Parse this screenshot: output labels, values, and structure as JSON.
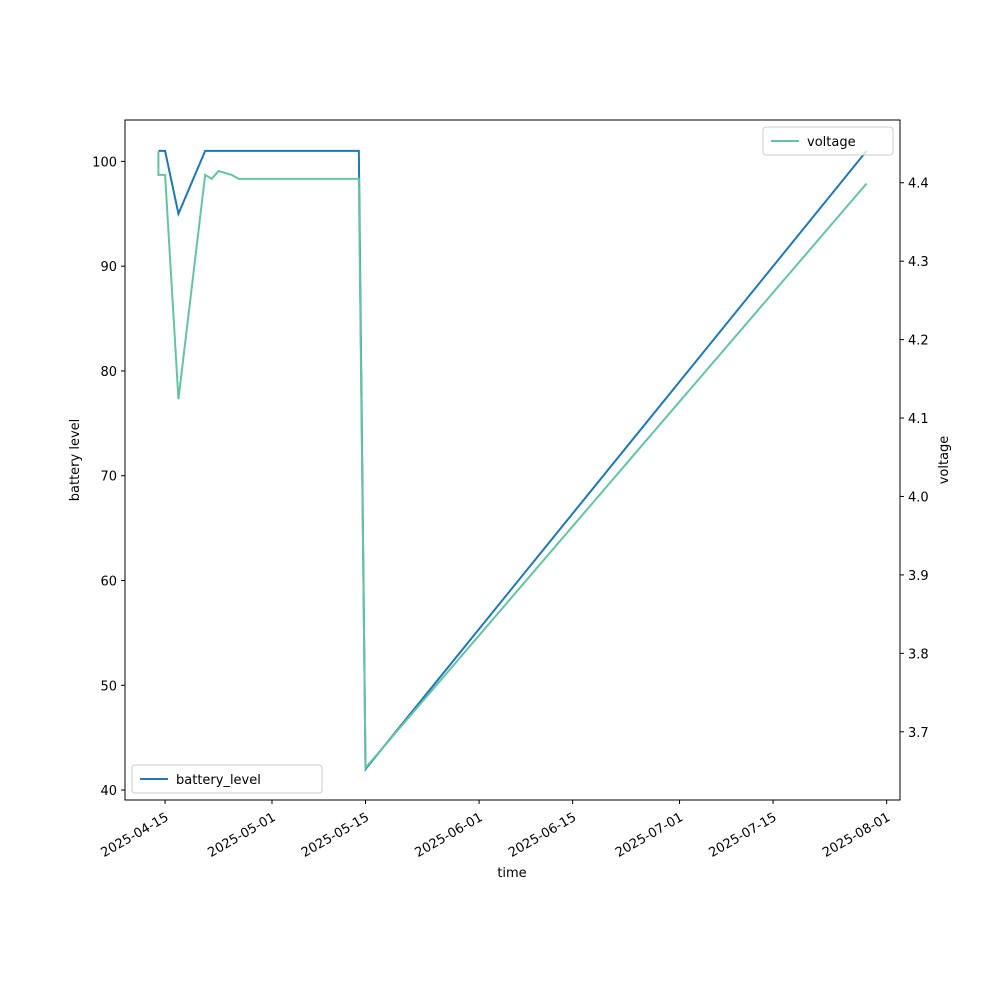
{
  "chart_data": {
    "type": "line",
    "xlabel": "time",
    "ylabel": "battery level",
    "y2label": "voltage",
    "xlim": [
      "2025-04-09",
      "2025-08-03"
    ],
    "xticks": [
      "2025-04-15",
      "2025-05-01",
      "2025-05-15",
      "2025-06-01",
      "2025-06-15",
      "2025-07-01",
      "2025-07-15",
      "2025-08-01"
    ],
    "ylim": [
      39.05,
      103.95
    ],
    "yticks": [
      40,
      50,
      60,
      70,
      80,
      90,
      100
    ],
    "y2lim": [
      3.613,
      4.48
    ],
    "y2ticks": [
      3.7,
      3.8,
      3.9,
      {
        "value": 4.0,
        "label": "4.0"
      },
      4.1,
      4.2,
      4.3,
      4.4
    ],
    "series": [
      {
        "name": "battery_level",
        "color": "#1f77b4",
        "legend_loc": "lower left",
        "x": [
          "2025-04-14",
          "2025-04-15",
          "2025-04-17",
          "2025-04-21",
          "2025-05-14",
          "2025-05-15",
          "2025-07-29"
        ],
        "values": [
          101,
          101,
          95,
          101,
          101,
          42,
          101
        ]
      },
      {
        "name": "voltage",
        "color": "#66c2a5",
        "axis": "y2",
        "legend_loc": "upper right",
        "x": [
          "2025-04-14",
          "2025-04-14",
          "2025-04-15",
          "2025-04-17",
          "2025-04-21",
          "2025-04-22",
          "2025-04-23",
          "2025-04-25",
          "2025-04-26",
          "2025-05-14",
          "2025-05-15",
          "2025-07-29"
        ],
        "values": [
          4.44,
          4.41,
          4.41,
          4.124,
          4.41,
          4.405,
          4.415,
          4.41,
          4.405,
          4.405,
          3.654,
          4.399
        ]
      }
    ]
  }
}
